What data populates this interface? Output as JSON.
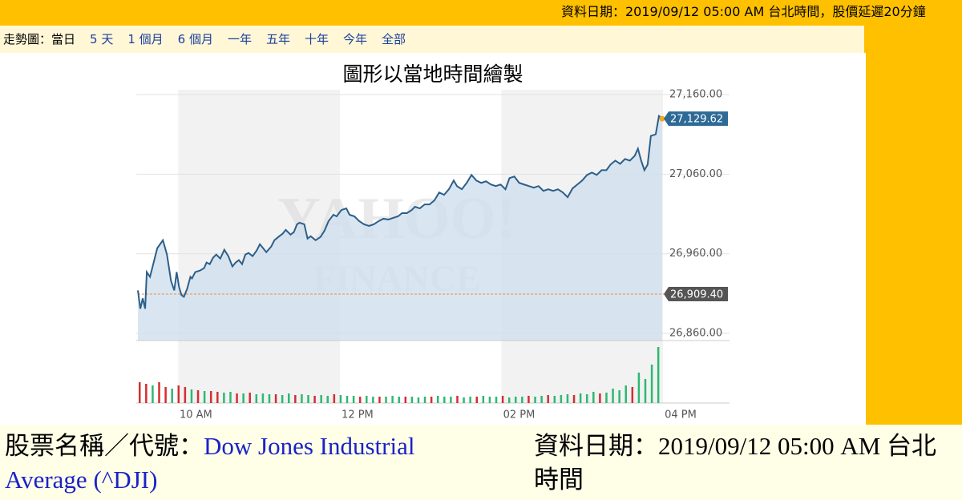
{
  "header": {
    "text": "資料日期：2019/09/12 05:00 AM 台北時間，股價延遲20分鐘"
  },
  "nav": {
    "label": "走勢圖：",
    "items": [
      "當日",
      "5 天",
      "1 個月",
      "6 個月",
      "一年",
      "五年",
      "十年",
      "今年",
      "全部"
    ]
  },
  "chart_data": {
    "type": "line",
    "title": "圖形以當地時間繪製",
    "watermark": [
      "YAHOO!",
      "FINANCE"
    ],
    "xlim": [
      9.5,
      16
    ],
    "xticks": [
      {
        "value": 10,
        "label": "10 AM"
      },
      {
        "value": 12,
        "label": "12 PM"
      },
      {
        "value": 14,
        "label": "02 PM"
      },
      {
        "value": 16,
        "label": "04 PM"
      }
    ],
    "ylim": [
      26851,
      27166
    ],
    "yticks": [
      {
        "value": 26860,
        "label": "26,860.00"
      },
      {
        "value": 26960,
        "label": "26,960.00"
      },
      {
        "value": 27060,
        "label": "27,060.00"
      },
      {
        "value": 27160,
        "label": "27,160.00"
      }
    ],
    "grid": true,
    "series": [
      {
        "name": "^DJI",
        "color": "#2c5f8a",
        "x": [
          9.5,
          9.53,
          9.56,
          9.59,
          9.61,
          9.65,
          9.69,
          9.74,
          9.81,
          9.86,
          9.91,
          9.95,
          9.98,
          10.01,
          10.04,
          10.07,
          10.11,
          10.15,
          10.17,
          10.21,
          10.27,
          10.32,
          10.35,
          10.39,
          10.43,
          10.47,
          10.52,
          10.57,
          10.62,
          10.67,
          10.71,
          10.75,
          10.79,
          10.83,
          10.87,
          10.92,
          10.97,
          11.01,
          11.05,
          11.09,
          11.15,
          11.19,
          11.25,
          11.29,
          11.33,
          11.39,
          11.43,
          11.47,
          11.5,
          11.56,
          11.6,
          11.64,
          11.7,
          11.76,
          11.81,
          11.86,
          11.92,
          11.96,
          12.02,
          12.08,
          12.12,
          12.18,
          12.24,
          12.3,
          12.36,
          12.42,
          12.48,
          12.54,
          12.6,
          12.66,
          12.72,
          12.77,
          12.83,
          12.89,
          12.93,
          12.99,
          13.05,
          13.11,
          13.17,
          13.23,
          13.29,
          13.35,
          13.41,
          13.45,
          13.51,
          13.57,
          13.63,
          13.69,
          13.75,
          13.81,
          13.87,
          13.93,
          13.99,
          14.05,
          14.1,
          14.16,
          14.22,
          14.28,
          14.34,
          14.4,
          14.46,
          14.52,
          14.58,
          14.64,
          14.7,
          14.76,
          14.82,
          14.88,
          14.94,
          15,
          15.06,
          15.12,
          15.18,
          15.24,
          15.3,
          15.35,
          15.41,
          15.47,
          15.53,
          15.59,
          15.65,
          15.69,
          15.73,
          15.77,
          15.81,
          15.85,
          15.91,
          15.95,
          15.99
        ],
        "values": [
          26914,
          26891,
          26904,
          26891,
          26937,
          26931,
          26947,
          26967,
          26977,
          26959,
          26926,
          26914,
          26937,
          26918,
          26908,
          26906,
          26916,
          26931,
          26929,
          26937,
          26939,
          26942,
          26949,
          26947,
          26955,
          26959,
          26954,
          26965,
          26957,
          26944,
          26949,
          26952,
          26947,
          26959,
          26961,
          26957,
          26964,
          26972,
          26967,
          26962,
          26969,
          26977,
          26982,
          26985,
          26990,
          26984,
          26987,
          26997,
          26999,
          26997,
          26979,
          26982,
          26977,
          26981,
          26989,
          27001,
          27009,
          27007,
          27015,
          27017,
          27009,
          27007,
          27001,
          26997,
          26995,
          26997,
          27001,
          27004,
          27003,
          27005,
          27007,
          27011,
          27011,
          27015,
          27019,
          27017,
          27022,
          27022,
          27027,
          27037,
          27034,
          27041,
          27052,
          27045,
          27041,
          27049,
          27059,
          27052,
          27049,
          27051,
          27047,
          27045,
          27047,
          27041,
          27055,
          27057,
          27049,
          27047,
          27045,
          27043,
          27045,
          27039,
          27041,
          27039,
          27041,
          27037,
          27031,
          27042,
          27047,
          27052,
          27059,
          27062,
          27059,
          27065,
          27065,
          27072,
          27077,
          27073,
          27079,
          27077,
          27083,
          27092,
          27077,
          27065,
          27072,
          27108,
          27110,
          27133,
          27129.62
        ]
      }
    ],
    "current": {
      "value": 27129.62,
      "label": "27,129.62",
      "color": "#f5a623"
    },
    "reference": {
      "value": 26909.4,
      "label": "26,909.40",
      "color": "#f08a3c"
    },
    "volume": {
      "values": [
        26,
        24,
        22,
        26,
        20,
        18,
        22,
        20,
        17,
        16,
        15,
        15,
        14,
        13,
        14,
        12,
        12,
        13,
        11,
        12,
        11,
        11,
        10,
        12,
        10,
        11,
        10,
        9,
        10,
        9,
        11,
        10,
        9,
        9,
        8,
        9,
        8,
        8,
        8,
        9,
        8,
        8,
        8,
        7,
        8,
        8,
        9,
        8,
        8,
        9,
        7,
        8,
        8,
        9,
        8,
        8,
        9,
        7,
        8,
        8,
        9,
        8,
        9,
        10,
        9,
        10,
        11,
        10,
        12,
        11,
        14,
        12,
        13,
        18,
        16,
        22,
        20,
        38,
        30,
        48,
        70
      ],
      "colors": [
        "#d32f2f",
        "#d32f2f",
        "#2eb872",
        "#d32f2f",
        "#d32f2f",
        "#2eb872",
        "#d32f2f",
        "#d32f2f",
        "#2eb872",
        "#d32f2f",
        "#2eb872",
        "#d32f2f",
        "#d32f2f",
        "#2eb872",
        "#2eb872",
        "#d32f2f",
        "#2eb872",
        "#d32f2f",
        "#2eb872",
        "#2eb872",
        "#2eb872",
        "#d32f2f",
        "#2eb872",
        "#2eb872",
        "#d32f2f",
        "#2eb872",
        "#2eb872",
        "#d32f2f",
        "#2eb872",
        "#2eb872",
        "#d32f2f",
        "#2eb872",
        "#2eb872",
        "#2eb872",
        "#d32f2f",
        "#2eb872",
        "#2eb872",
        "#d32f2f",
        "#2eb872",
        "#2eb872",
        "#2eb872",
        "#d32f2f",
        "#2eb872",
        "#2eb872",
        "#2eb872",
        "#d32f2f",
        "#2eb872",
        "#2eb872",
        "#2eb872",
        "#d32f2f",
        "#2eb872",
        "#2eb872",
        "#d32f2f",
        "#2eb872",
        "#2eb872",
        "#2eb872",
        "#d32f2f",
        "#2eb872",
        "#2eb872",
        "#2eb872",
        "#d32f2f",
        "#2eb872",
        "#2eb872",
        "#d32f2f",
        "#2eb872",
        "#2eb872",
        "#2eb872",
        "#d32f2f",
        "#2eb872",
        "#2eb872",
        "#2eb872",
        "#d32f2f",
        "#2eb872",
        "#2eb872",
        "#2eb872",
        "#2eb872",
        "#d32f2f",
        "#2eb872",
        "#2eb872",
        "#2eb872",
        "#2eb872"
      ]
    }
  },
  "footer": {
    "name_label": "股票名稱／代號：",
    "name": "Dow Jones Industrial Average (^DJI)",
    "date": "資料日期：2019/09/12 05:00 AM 台北時間"
  }
}
